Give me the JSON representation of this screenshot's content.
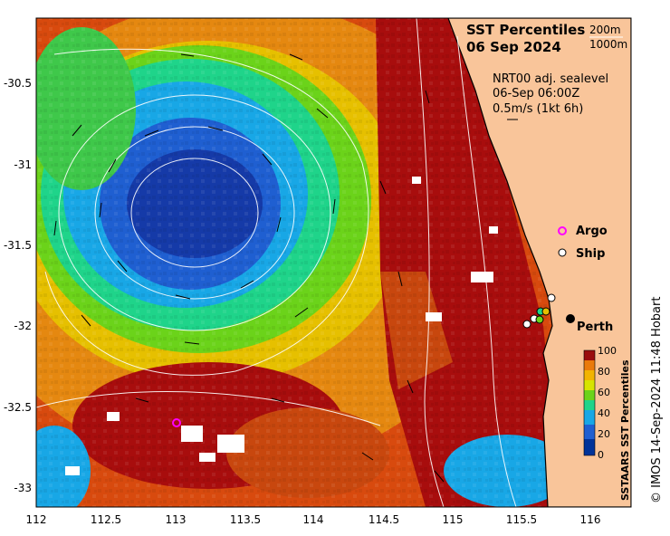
{
  "map": {
    "title_line1": "SST Percentiles",
    "title_line2": "06 Sep 2024",
    "depth_labels": [
      "200m",
      "1000m"
    ],
    "sealevel_line1": "NRT00 adj. sealevel",
    "sealevel_line2": "06-Sep 06:00Z",
    "sealevel_line3": "0.5m/s (1kt 6h)",
    "x_ticks": [
      "112",
      "112.5",
      "113",
      "113.5",
      "114",
      "114.5",
      "115",
      "115.5",
      "116"
    ],
    "y_ticks": [
      "-30.5",
      "-31",
      "-31.5",
      "-32",
      "-32.5",
      "-33"
    ],
    "markers": {
      "argo_label": "Argo",
      "ship_label": "Ship",
      "city_label": "Perth"
    },
    "colorbar": {
      "title": "SSTAARS SST Percentiles",
      "ticks": [
        "100",
        "80",
        "60",
        "40",
        "20",
        "0"
      ],
      "colors": [
        "#003399",
        "#1f5fd1",
        "#18a7e6",
        "#1fd48a",
        "#6bd31a",
        "#d7e400",
        "#f2b400",
        "#ea7a0c",
        "#c8470e",
        "#9a0d0d"
      ]
    },
    "credit": "© IMOS 14-Sep-2024 11:48 Hobart",
    "colors": {
      "land": "#f9c59a",
      "deep_blue": "#1f3fb0",
      "red": "#a80d0d",
      "orange": "#e8720c"
    }
  }
}
